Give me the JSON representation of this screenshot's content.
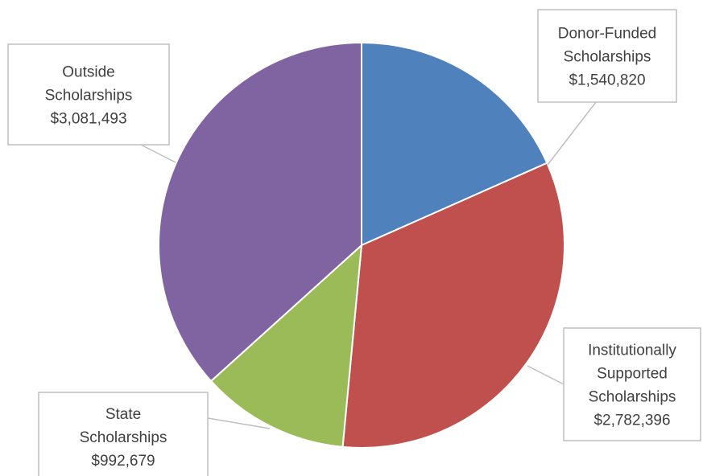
{
  "chart_data": {
    "type": "pie",
    "title": "",
    "legend": "none",
    "slices": [
      {
        "label": "Donor-Funded Scholarships",
        "label_lines": [
          "Donor-Funded",
          "Scholarships"
        ],
        "value": 1540820,
        "value_label": "$1,540,820",
        "color": "#4f81bd"
      },
      {
        "label": "Institutionally Supported Scholarships",
        "label_lines": [
          "Institutionally",
          "Supported",
          "Scholarships"
        ],
        "value": 2782396,
        "value_label": "$2,782,396",
        "color": "#c0504d"
      },
      {
        "label": "State Scholarships",
        "label_lines": [
          "State",
          "Scholarships"
        ],
        "value": 992679,
        "value_label": "$992,679",
        "color": "#9bbb59"
      },
      {
        "label": "Outside Scholarships",
        "label_lines": [
          "Outside",
          "Scholarships"
        ],
        "value": 3081493,
        "value_label": "$3,081,493",
        "color": "#8064a2"
      }
    ]
  }
}
